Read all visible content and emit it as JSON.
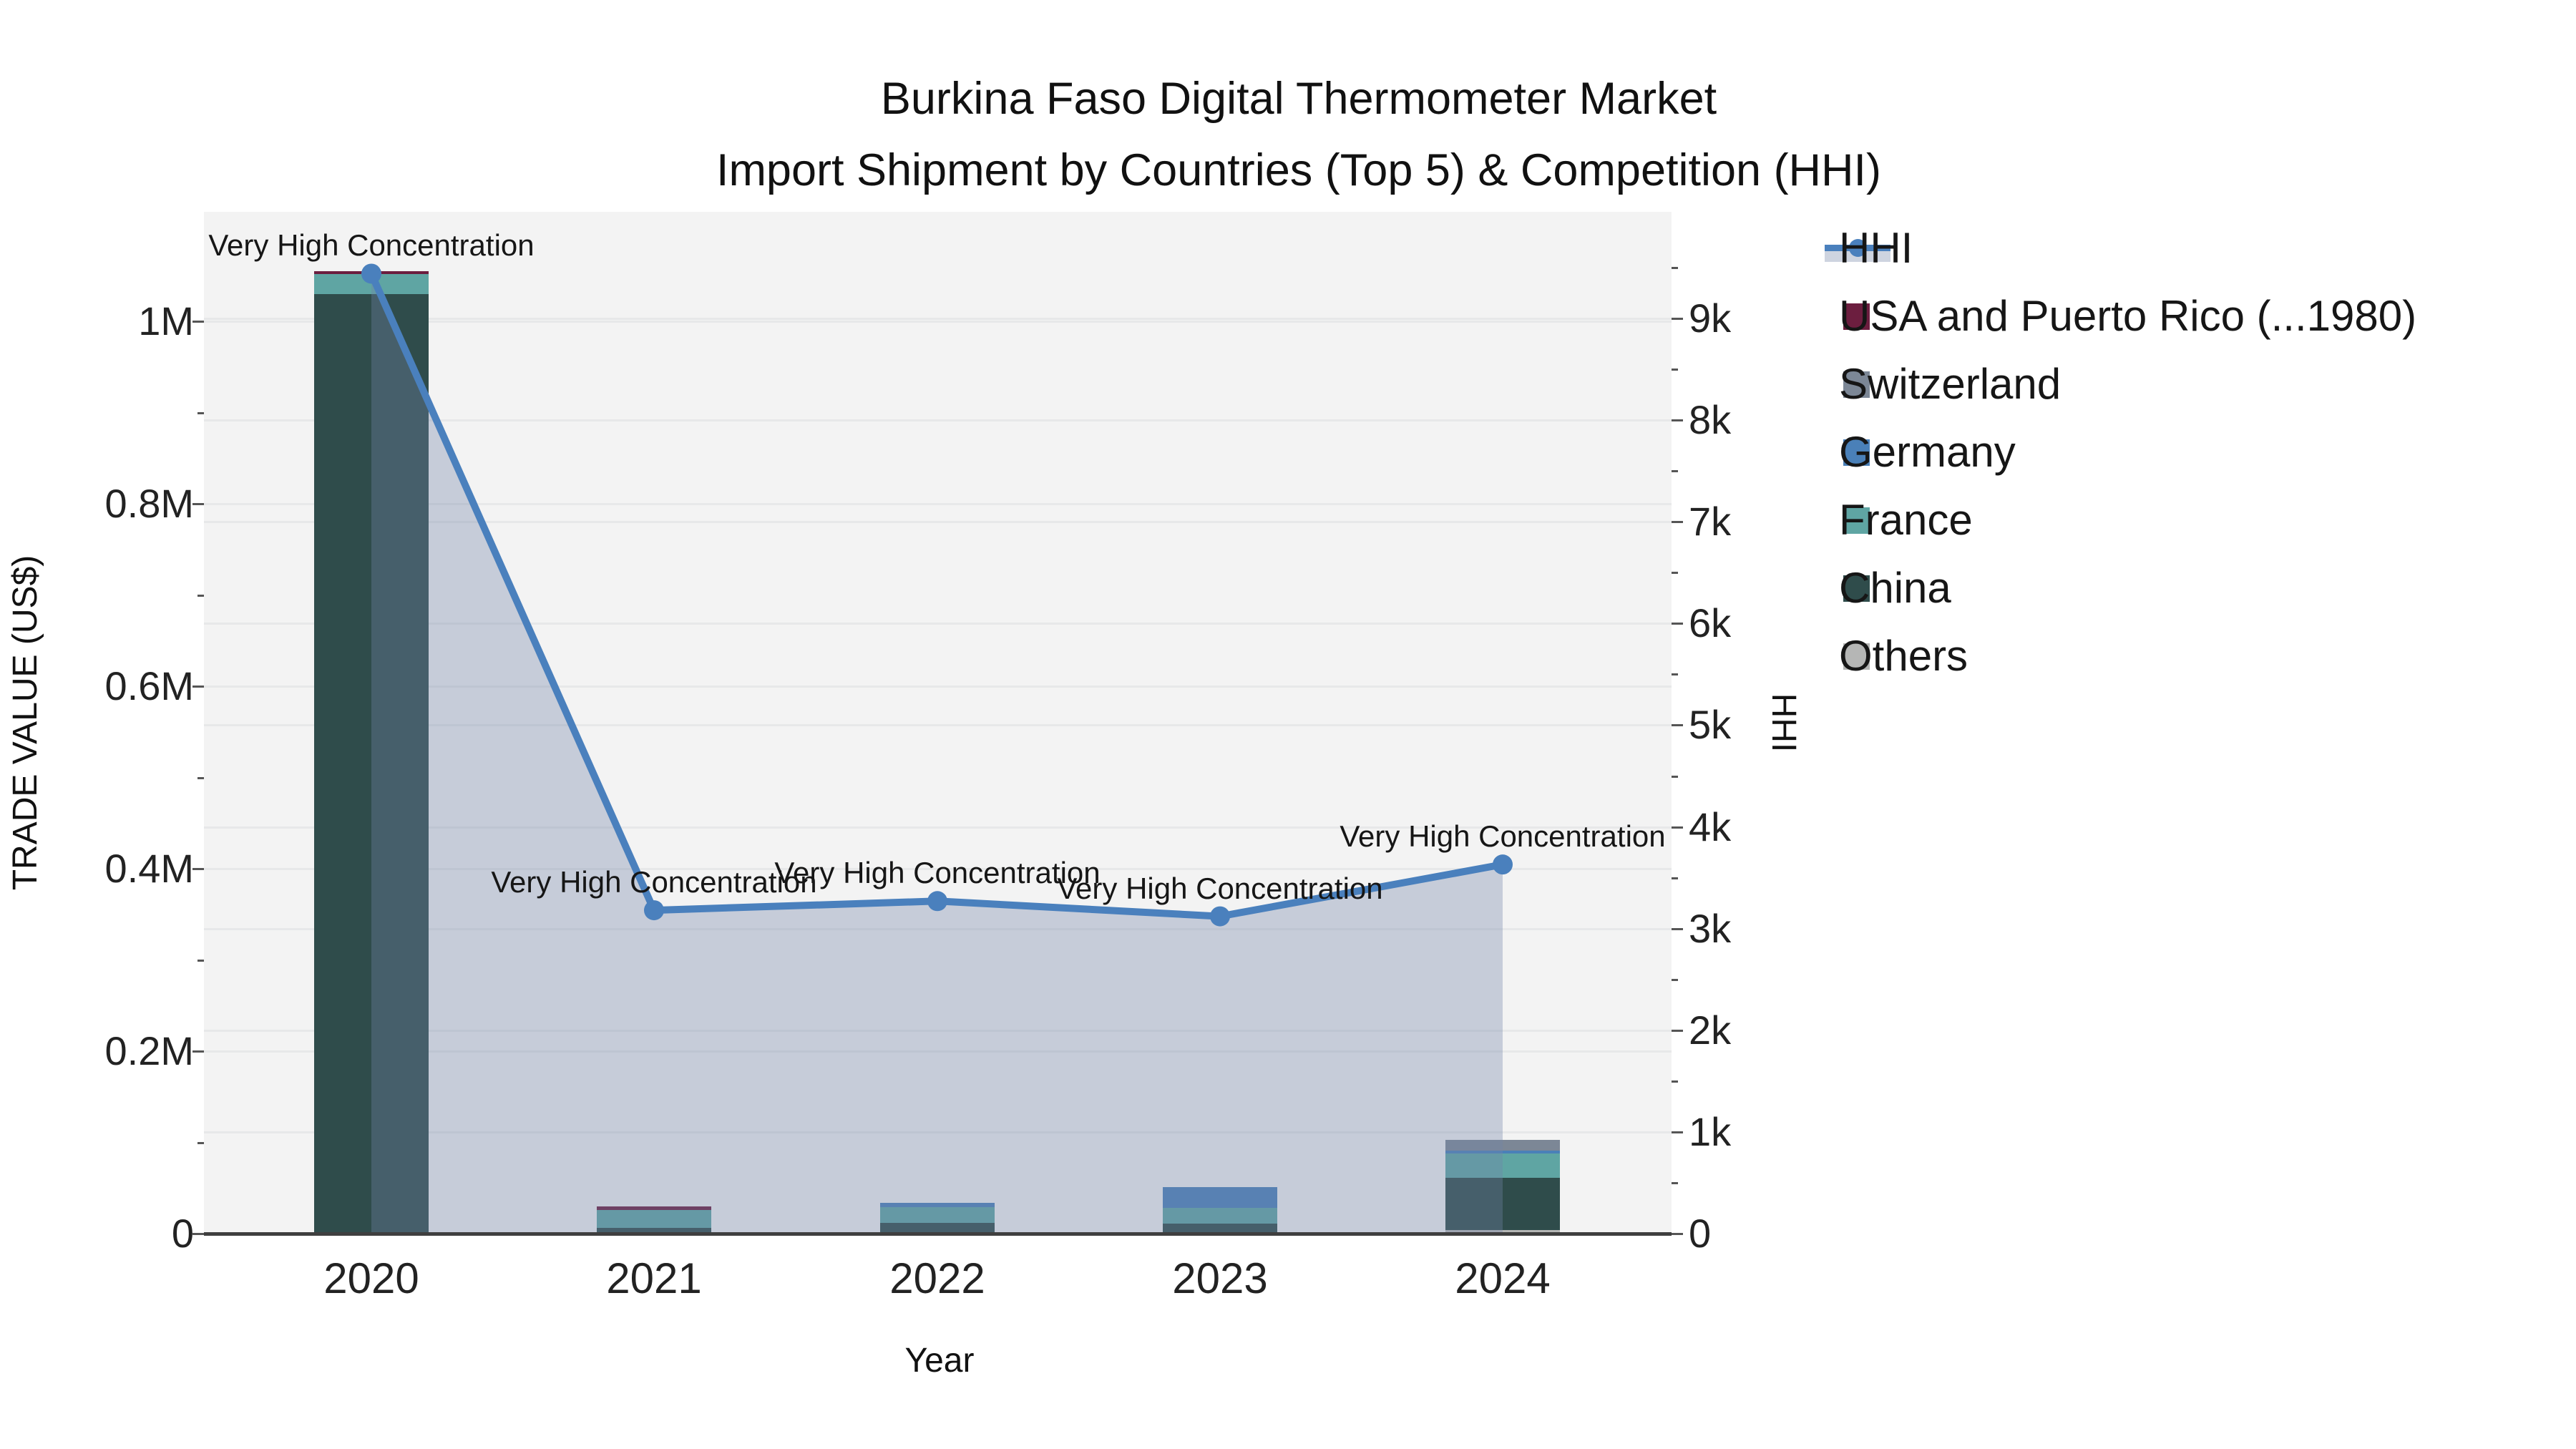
{
  "title": {
    "line1": "Burkina Faso Digital Thermometer Market",
    "line2": "Import Shipment by Countries (Top 5) & Competition (HHI)"
  },
  "colors": {
    "plot_bg": "#f3f3f3",
    "grid": "#e7e8e9",
    "axis_line": "#3f3f3f",
    "hhi_line": "#4a80bd",
    "hhi_fill": "rgba(116,133,168,0.35)",
    "hhi_fill_solid": "#ced4e0"
  },
  "legend": [
    {
      "id": "hhi",
      "label": "HHI",
      "type": "line",
      "color": "#4a80bd",
      "fill": "#ced4e0"
    },
    {
      "id": "usa",
      "label": "USA and Puerto Rico (...1980)",
      "type": "swatch",
      "color": "#6c1e3f"
    },
    {
      "id": "switzerland",
      "label": "Switzerland",
      "type": "swatch",
      "color": "#7c8796"
    },
    {
      "id": "germany",
      "label": "Germany",
      "type": "swatch",
      "color": "#4a80b8"
    },
    {
      "id": "france",
      "label": "France",
      "type": "swatch",
      "color": "#5fa5a3"
    },
    {
      "id": "china",
      "label": "China",
      "type": "swatch",
      "color": "#2f4c4b"
    },
    {
      "id": "others",
      "label": "Others",
      "type": "swatch",
      "color": "#b5b6b5"
    }
  ],
  "chart_data": {
    "type": "combo",
    "subtype": "stacked-bar + line-area on secondary axis",
    "x_title": "Year",
    "categories": [
      "2020",
      "2021",
      "2022",
      "2023",
      "2024"
    ],
    "bar_series_bottom_to_top": [
      {
        "name": "Others",
        "color": "#b5b6b5",
        "values": [
          0,
          0,
          0,
          0,
          4000
        ]
      },
      {
        "name": "China",
        "color": "#2f4c4b",
        "values": [
          1030000,
          6000,
          12000,
          11000,
          57000
        ]
      },
      {
        "name": "France",
        "color": "#5fa5a3",
        "values": [
          22000,
          20000,
          17000,
          17000,
          27000
        ]
      },
      {
        "name": "Germany",
        "color": "#4a80b8",
        "values": [
          0,
          0,
          5000,
          23000,
          3000
        ]
      },
      {
        "name": "Switzerland",
        "color": "#7c8796",
        "values": [
          0,
          0,
          0,
          0,
          12000
        ]
      },
      {
        "name": "USA and Puerto Rico (...1980)",
        "color": "#6c1e3f",
        "values": [
          3000,
          4000,
          0,
          0,
          0
        ]
      }
    ],
    "bar_totals": [
      1055000,
      30000,
      34000,
      51000,
      103000
    ],
    "line_series": {
      "name": "HHI",
      "axis": "right",
      "color": "#4a80bd",
      "fill": "rgba(116,133,168,0.35)",
      "markers": true,
      "values": [
        9440,
        3180,
        3270,
        3120,
        3630
      ]
    },
    "annotations": [
      {
        "category": "2020",
        "text": "Very High Concentration"
      },
      {
        "category": "2021",
        "text": "Very High Concentration"
      },
      {
        "category": "2022",
        "text": "Very High Concentration"
      },
      {
        "category": "2023",
        "text": "Very High Concentration"
      },
      {
        "category": "2024",
        "text": "Very High Concentration"
      }
    ],
    "y_left": {
      "title": "TRADE VALUE (US$)",
      "range": [
        0,
        1120000
      ],
      "grid": true,
      "ticks": [
        {
          "v": 0,
          "label": "0"
        },
        {
          "v": 200000,
          "label": "0.2M"
        },
        {
          "v": 400000,
          "label": "0.4M"
        },
        {
          "v": 600000,
          "label": "0.6M"
        },
        {
          "v": 800000,
          "label": "0.8M"
        },
        {
          "v": 1000000,
          "label": "1M"
        }
      ]
    },
    "y_right": {
      "title": "HHI",
      "range": [
        0,
        10050
      ],
      "grid": true,
      "ticks": [
        {
          "v": 0,
          "label": "0"
        },
        {
          "v": 1000,
          "label": "1k"
        },
        {
          "v": 2000,
          "label": "2k"
        },
        {
          "v": 3000,
          "label": "3k"
        },
        {
          "v": 4000,
          "label": "4k"
        },
        {
          "v": 5000,
          "label": "5k"
        },
        {
          "v": 6000,
          "label": "6k"
        },
        {
          "v": 7000,
          "label": "7k"
        },
        {
          "v": 8000,
          "label": "8k"
        },
        {
          "v": 9000,
          "label": "9k"
        }
      ]
    }
  }
}
